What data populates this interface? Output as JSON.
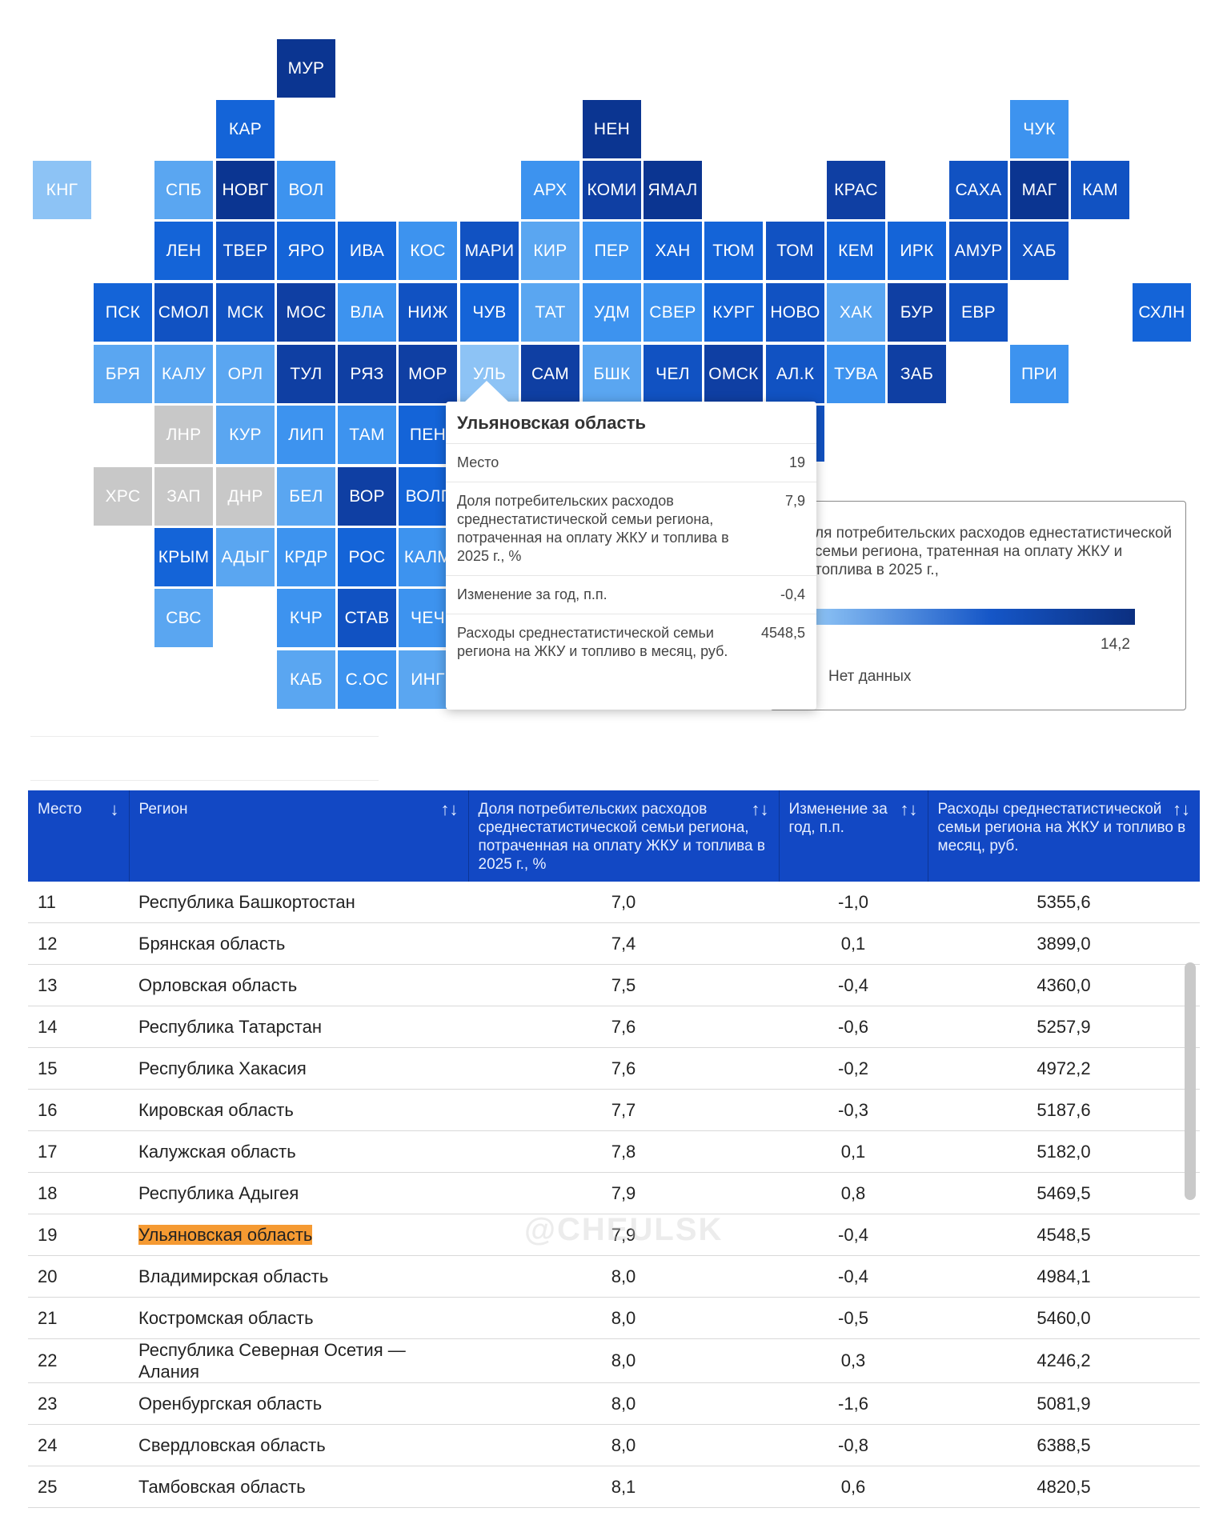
{
  "map": {
    "tiles": [
      {
        "label": "МУР",
        "color": "#0b3591"
      },
      {
        "label": "КАР",
        "color": "#1464d8"
      },
      {
        "label": "НЕН",
        "color": "#0b3591"
      },
      {
        "label": "ЧУК",
        "color": "#3d93ef"
      },
      {
        "label": "КНГ",
        "color": "#8dc3f5"
      },
      {
        "label": "СПБ",
        "color": "#5aa6f1"
      },
      {
        "label": "НОВГ",
        "color": "#0b3591"
      },
      {
        "label": "ВОЛ",
        "color": "#3d93ef"
      },
      {
        "label": "АРХ",
        "color": "#3d93ef"
      },
      {
        "label": "КОМИ",
        "color": "#0f3fa3"
      },
      {
        "label": "ЯМАЛ",
        "color": "#0b3591"
      },
      {
        "label": "КРАС",
        "color": "#0f3fa3"
      },
      {
        "label": "САХА",
        "color": "#1152c2"
      },
      {
        "label": "МАГ",
        "color": "#0b3591"
      },
      {
        "label": "КАМ",
        "color": "#1152c2"
      },
      {
        "label": "ЛЕН",
        "color": "#1464d8"
      },
      {
        "label": "ТВЕР",
        "color": "#1152c2"
      },
      {
        "label": "ЯРО",
        "color": "#1464d8"
      },
      {
        "label": "ИВА",
        "color": "#1464d8"
      },
      {
        "label": "КОС",
        "color": "#3d93ef"
      },
      {
        "label": "МАРИ",
        "color": "#1152c2"
      },
      {
        "label": "КИР",
        "color": "#5aa6f1"
      },
      {
        "label": "ПЕР",
        "color": "#3d93ef"
      },
      {
        "label": "ХАН",
        "color": "#1464d8"
      },
      {
        "label": "ТЮМ",
        "color": "#1464d8"
      },
      {
        "label": "ТОМ",
        "color": "#1152c2"
      },
      {
        "label": "КЕМ",
        "color": "#1464d8"
      },
      {
        "label": "ИРК",
        "color": "#1464d8"
      },
      {
        "label": "АМУР",
        "color": "#1152c2"
      },
      {
        "label": "ХАБ",
        "color": "#1152c2"
      },
      {
        "label": "ПСК",
        "color": "#1464d8"
      },
      {
        "label": "СМОЛ",
        "color": "#1152c2"
      },
      {
        "label": "МСК",
        "color": "#1152c2"
      },
      {
        "label": "МОС",
        "color": "#0f3fa3"
      },
      {
        "label": "ВЛА",
        "color": "#3d93ef"
      },
      {
        "label": "НИЖ",
        "color": "#1152c2"
      },
      {
        "label": "ЧУВ",
        "color": "#1464d8"
      },
      {
        "label": "ТАТ",
        "color": "#5aa6f1"
      },
      {
        "label": "УДМ",
        "color": "#3d93ef"
      },
      {
        "label": "СВЕР",
        "color": "#3d93ef"
      },
      {
        "label": "КУРГ",
        "color": "#1464d8"
      },
      {
        "label": "НОВО",
        "color": "#1152c2"
      },
      {
        "label": "ХАК",
        "color": "#5aa6f1"
      },
      {
        "label": "БУР",
        "color": "#0f3fa3"
      },
      {
        "label": "ЕВР",
        "color": "#1152c2"
      },
      {
        "label": "СХЛН",
        "color": "#1464d8"
      },
      {
        "label": "БРЯ",
        "color": "#5aa6f1"
      },
      {
        "label": "КАЛУ",
        "color": "#5aa6f1"
      },
      {
        "label": "ОРЛ",
        "color": "#5aa6f1"
      },
      {
        "label": "ТУЛ",
        "color": "#0f3fa3"
      },
      {
        "label": "РЯЗ",
        "color": "#0f3fa3"
      },
      {
        "label": "МОР",
        "color": "#0f3fa3"
      },
      {
        "label": "УЛЬ",
        "color": "#8dc3f5"
      },
      {
        "label": "САМ",
        "color": "#0f3fa3"
      },
      {
        "label": "БШК",
        "color": "#5aa6f1"
      },
      {
        "label": "ЧЕЛ",
        "color": "#1152c2"
      },
      {
        "label": "ОМСК",
        "color": "#0f3fa3"
      },
      {
        "label": "АЛ.К",
        "color": "#1152c2"
      },
      {
        "label": "ТУВА",
        "color": "#3d93ef"
      },
      {
        "label": "ЗАБ",
        "color": "#0f3fa3"
      },
      {
        "label": "ПРИ",
        "color": "#3d93ef"
      },
      {
        "label": "ЛНР",
        "color": "#c8c8c8"
      },
      {
        "label": "КУР",
        "color": "#5aa6f1"
      },
      {
        "label": "ЛИП",
        "color": "#3d93ef"
      },
      {
        "label": "ТАМ",
        "color": "#3d93ef"
      },
      {
        "label": "ПЕН",
        "color": "#1464d8"
      },
      {
        "label": "ХРС",
        "color": "#c8c8c8"
      },
      {
        "label": "ЗАП",
        "color": "#c8c8c8"
      },
      {
        "label": "ДНР",
        "color": "#c8c8c8"
      },
      {
        "label": "БЕЛ",
        "color": "#5aa6f1"
      },
      {
        "label": "ВОР",
        "color": "#0f3fa3"
      },
      {
        "label": "ВОЛГ",
        "color": "#1464d8"
      },
      {
        "label": "КРЫМ",
        "color": "#1464d8"
      },
      {
        "label": "АДЫГ",
        "color": "#5aa6f1"
      },
      {
        "label": "КРДР",
        "color": "#3d93ef"
      },
      {
        "label": "РОС",
        "color": "#1464d8"
      },
      {
        "label": "КАЛМ",
        "color": "#3d93ef"
      },
      {
        "label": "СВС",
        "color": "#5aa6f1"
      },
      {
        "label": "КЧР",
        "color": "#3d93ef"
      },
      {
        "label": "СТАВ",
        "color": "#1152c2"
      },
      {
        "label": "ЧЕЧ",
        "color": "#3d93ef"
      },
      {
        "label": "КАБ",
        "color": "#5aa6f1"
      },
      {
        "label": "С.ОС",
        "color": "#3d93ef"
      },
      {
        "label": "ИНГ",
        "color": "#5aa6f1"
      },
      {
        "label": "",
        "color": "#1152c2"
      }
    ]
  },
  "tooltip": {
    "title": "Ульяновская область",
    "rows": [
      {
        "label": "Место",
        "value": "19"
      },
      {
        "label": "Доля потребительских расходов среднестатистической семьи региона, потраченная на оплату ЖКУ и топлива в 2025 г., %",
        "value": "7,9"
      },
      {
        "label": "Изменение за год, п.п.",
        "value": "-0,4"
      },
      {
        "label": "Расходы среднестатистической семьи региона на ЖКУ и топливо в месяц, руб.",
        "value": "4548,5"
      }
    ]
  },
  "legend": {
    "title": "ля потребительских расходов еднестатистической семьи региона, тратенная на оплату ЖКУ и топлива в 2025 г.,",
    "max": "14,2",
    "no_data": "Нет данных",
    "gradient": [
      "#8dc3f5",
      "#1556c7",
      "#0b2f80"
    ]
  },
  "table": {
    "headers": [
      {
        "label": "Место",
        "sort": "↓"
      },
      {
        "label": "Регион",
        "sort": "↑↓"
      },
      {
        "label": "Доля потребительских расходов среднестатистической семьи региона, потраченная на оплату ЖКУ и топлива в 2025 г., %",
        "sort": "↑↓"
      },
      {
        "label": "Изменение за год, п.п.",
        "sort": "↑↓"
      },
      {
        "label": "Расходы среднестатистической семьи региона на ЖКУ и топливо в месяц, руб.",
        "sort": "↑↓"
      }
    ],
    "rows": [
      {
        "place": "11",
        "region": "Республика Башкортостан",
        "share": "7,0",
        "change": "-1,0",
        "spend": "5355,6"
      },
      {
        "place": "12",
        "region": "Брянская область",
        "share": "7,4",
        "change": "0,1",
        "spend": "3899,0"
      },
      {
        "place": "13",
        "region": "Орловская область",
        "share": "7,5",
        "change": "-0,4",
        "spend": "4360,0"
      },
      {
        "place": "14",
        "region": "Республика Татарстан",
        "share": "7,6",
        "change": "-0,6",
        "spend": "5257,9"
      },
      {
        "place": "15",
        "region": "Республика Хакасия",
        "share": "7,6",
        "change": "-0,2",
        "spend": "4972,2"
      },
      {
        "place": "16",
        "region": "Кировская область",
        "share": "7,7",
        "change": "-0,3",
        "spend": "5187,6"
      },
      {
        "place": "17",
        "region": "Калужская область",
        "share": "7,8",
        "change": "0,1",
        "spend": "5182,0"
      },
      {
        "place": "18",
        "region": "Республика Адыгея",
        "share": "7,9",
        "change": "0,8",
        "spend": "5469,5"
      },
      {
        "place": "19",
        "region": "Ульяновская область",
        "share": "7,9",
        "change": "-0,4",
        "spend": "4548,5",
        "highlight": true
      },
      {
        "place": "20",
        "region": "Владимирская область",
        "share": "8,0",
        "change": "-0,4",
        "spend": "4984,1"
      },
      {
        "place": "21",
        "region": "Костромская область",
        "share": "8,0",
        "change": "-0,5",
        "spend": "5460,0"
      },
      {
        "place": "22",
        "region": "Республика Северная Осетия — Алания",
        "share": "8,0",
        "change": "0,3",
        "spend": "4246,2"
      },
      {
        "place": "23",
        "region": "Оренбургская область",
        "share": "8,0",
        "change": "-1,6",
        "spend": "5081,9"
      },
      {
        "place": "24",
        "region": "Свердловская область",
        "share": "8,0",
        "change": "-0,8",
        "spend": "6388,5"
      },
      {
        "place": "25",
        "region": "Тамбовская область",
        "share": "8,1",
        "change": "0,6",
        "spend": "4820,5"
      }
    ]
  },
  "watermark": "@CHEULSK"
}
